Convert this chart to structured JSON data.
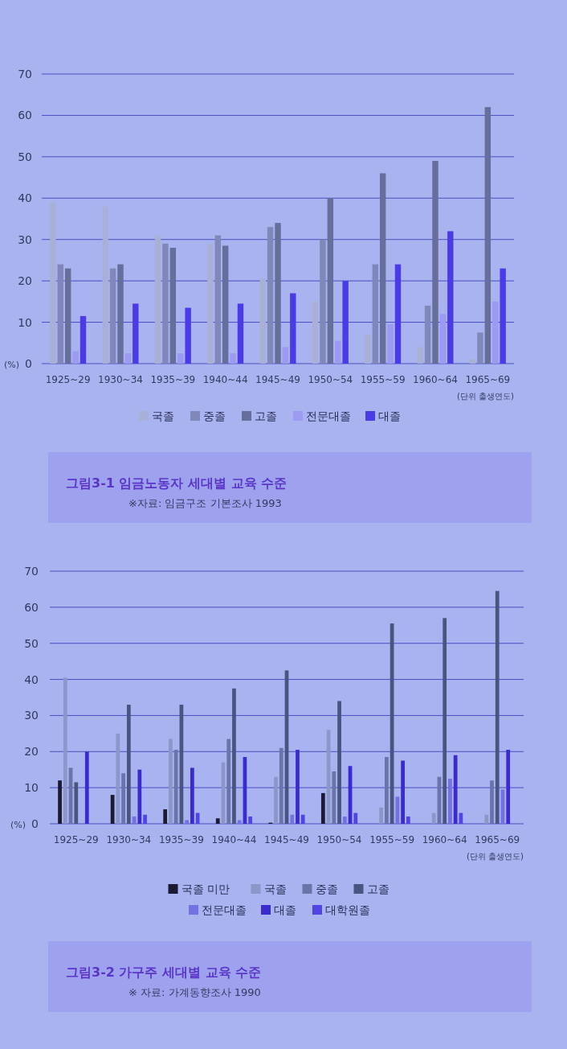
{
  "chart_data": [
    {
      "type": "bar",
      "title": "그림3-1  임금노동자 세대별 교육 수준",
      "annotations": [
        "※자료: 임금구조 기본조사 1993"
      ],
      "xlabel": "(단위 출생연도)",
      "ylabel": "(%)",
      "categories": [
        "1925~29",
        "1930~34",
        "1935~39",
        "1940~44",
        "1945~49",
        "1950~54",
        "1955~59",
        "1960~64",
        "1965~69"
      ],
      "ylim": [
        0,
        70
      ],
      "yticks": [
        0,
        10,
        20,
        30,
        40,
        50,
        60,
        70
      ],
      "grid": "y",
      "legend": "bottom",
      "series": [
        {
          "name": "국졸",
          "color": "#a9b0d6",
          "values": [
            39,
            38,
            31,
            29,
            20.5,
            15,
            7,
            4,
            1
          ]
        },
        {
          "name": "중졸",
          "color": "#7f88b8",
          "values": [
            24,
            23,
            29,
            31,
            33,
            30,
            24,
            14,
            7.5
          ]
        },
        {
          "name": "고졸",
          "color": "#666e9c",
          "values": [
            23,
            24,
            28,
            28.5,
            34,
            40,
            46,
            49,
            62
          ]
        },
        {
          "name": "전문대졸",
          "color": "#9c9af2",
          "values": [
            3,
            2.5,
            2.5,
            2.5,
            4,
            5.5,
            9.5,
            12,
            15
          ]
        },
        {
          "name": "대졸",
          "color": "#4a3ae8",
          "values": [
            11.5,
            14.5,
            13.5,
            14.5,
            17,
            20,
            24,
            32,
            23
          ]
        }
      ]
    },
    {
      "type": "bar",
      "title": "그림3-2  가구주 세대별 교육 수준",
      "annotations": [
        "※ 자료: 가계동향조사 1990"
      ],
      "xlabel": "(단위 출생연도)",
      "ylabel": "(%)",
      "categories": [
        "1925~29",
        "1930~34",
        "1935~39",
        "1940~44",
        "1945~49",
        "1950~54",
        "1955~59",
        "1960~64",
        "1965~69"
      ],
      "ylim": [
        0,
        70
      ],
      "yticks": [
        0,
        10,
        20,
        30,
        40,
        50,
        60,
        70
      ],
      "grid": "y",
      "legend": "bottom",
      "series": [
        {
          "name": "국졸 미만",
          "color": "#1a1a30",
          "values": [
            12,
            8,
            4,
            1.5,
            0.3,
            8.5,
            0,
            0,
            0
          ]
        },
        {
          "name": "국졸",
          "color": "#8c96c8",
          "values": [
            40.5,
            25,
            23.5,
            17,
            13,
            26,
            4.5,
            3,
            2.5
          ]
        },
        {
          "name": "중졸",
          "color": "#6a74a8",
          "values": [
            15.5,
            14,
            20.5,
            23.5,
            21,
            14.5,
            18.5,
            13,
            12
          ]
        },
        {
          "name": "고졸",
          "color": "#4a5480",
          "values": [
            11.5,
            33,
            33,
            37.5,
            42.5,
            34,
            55.5,
            57,
            64.5
          ]
        },
        {
          "name": "전문대졸",
          "color": "#7472e2",
          "values": [
            0,
            2,
            1,
            1,
            2.5,
            2,
            7.5,
            12.5,
            9.5
          ]
        },
        {
          "name": "대졸",
          "color": "#3a2ad0",
          "values": [
            20,
            15,
            15.5,
            18.5,
            20.5,
            16,
            17.5,
            19,
            20.5
          ]
        },
        {
          "name": "대학원졸",
          "color": "#5244e4",
          "values": [
            0,
            2.5,
            3,
            2,
            2.5,
            3,
            2,
            3,
            0
          ]
        }
      ]
    }
  ]
}
